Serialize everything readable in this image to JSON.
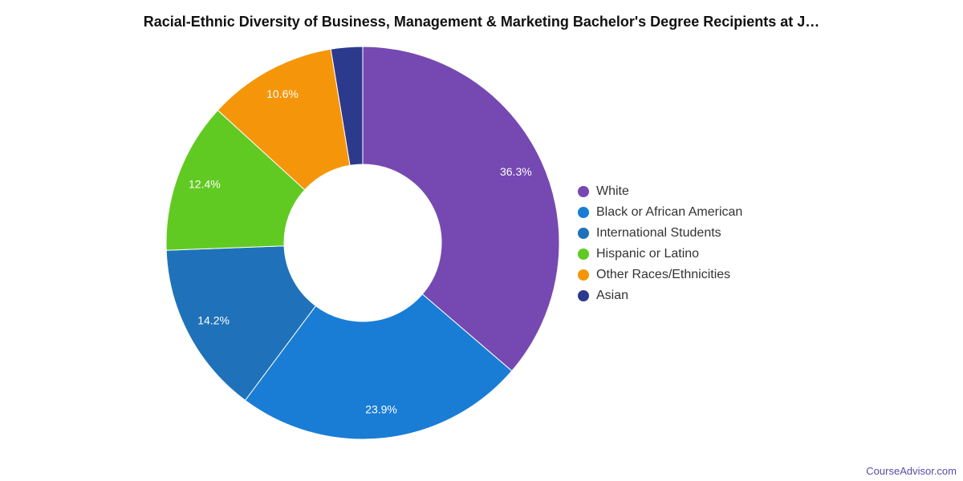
{
  "chart_data": {
    "type": "pie",
    "title": "Racial-Ethnic Diversity of Business, Management & Marketing Bachelor's Degree Recipients at J…",
    "style": "donut",
    "legend_position": "right",
    "start_angle_deg": 0,
    "series": [
      {
        "name": "White",
        "value": 36.3,
        "label": "36.3%",
        "color": "#7549b1"
      },
      {
        "name": "Black or African American",
        "value": 23.9,
        "label": "23.9%",
        "color": "#197dd5"
      },
      {
        "name": "International Students",
        "value": 14.2,
        "label": "14.2%",
        "color": "#1f72b9"
      },
      {
        "name": "Hispanic or Latino",
        "value": 12.4,
        "label": "12.4%",
        "color": "#61ca22"
      },
      {
        "name": "Other Races/Ethnicities",
        "value": 10.6,
        "label": "10.6%",
        "color": "#f5960a"
      },
      {
        "name": "Asian",
        "value": 2.6,
        "label": "",
        "color": "#2c3a8e"
      }
    ]
  },
  "watermark": "CourseAdvisor.com"
}
